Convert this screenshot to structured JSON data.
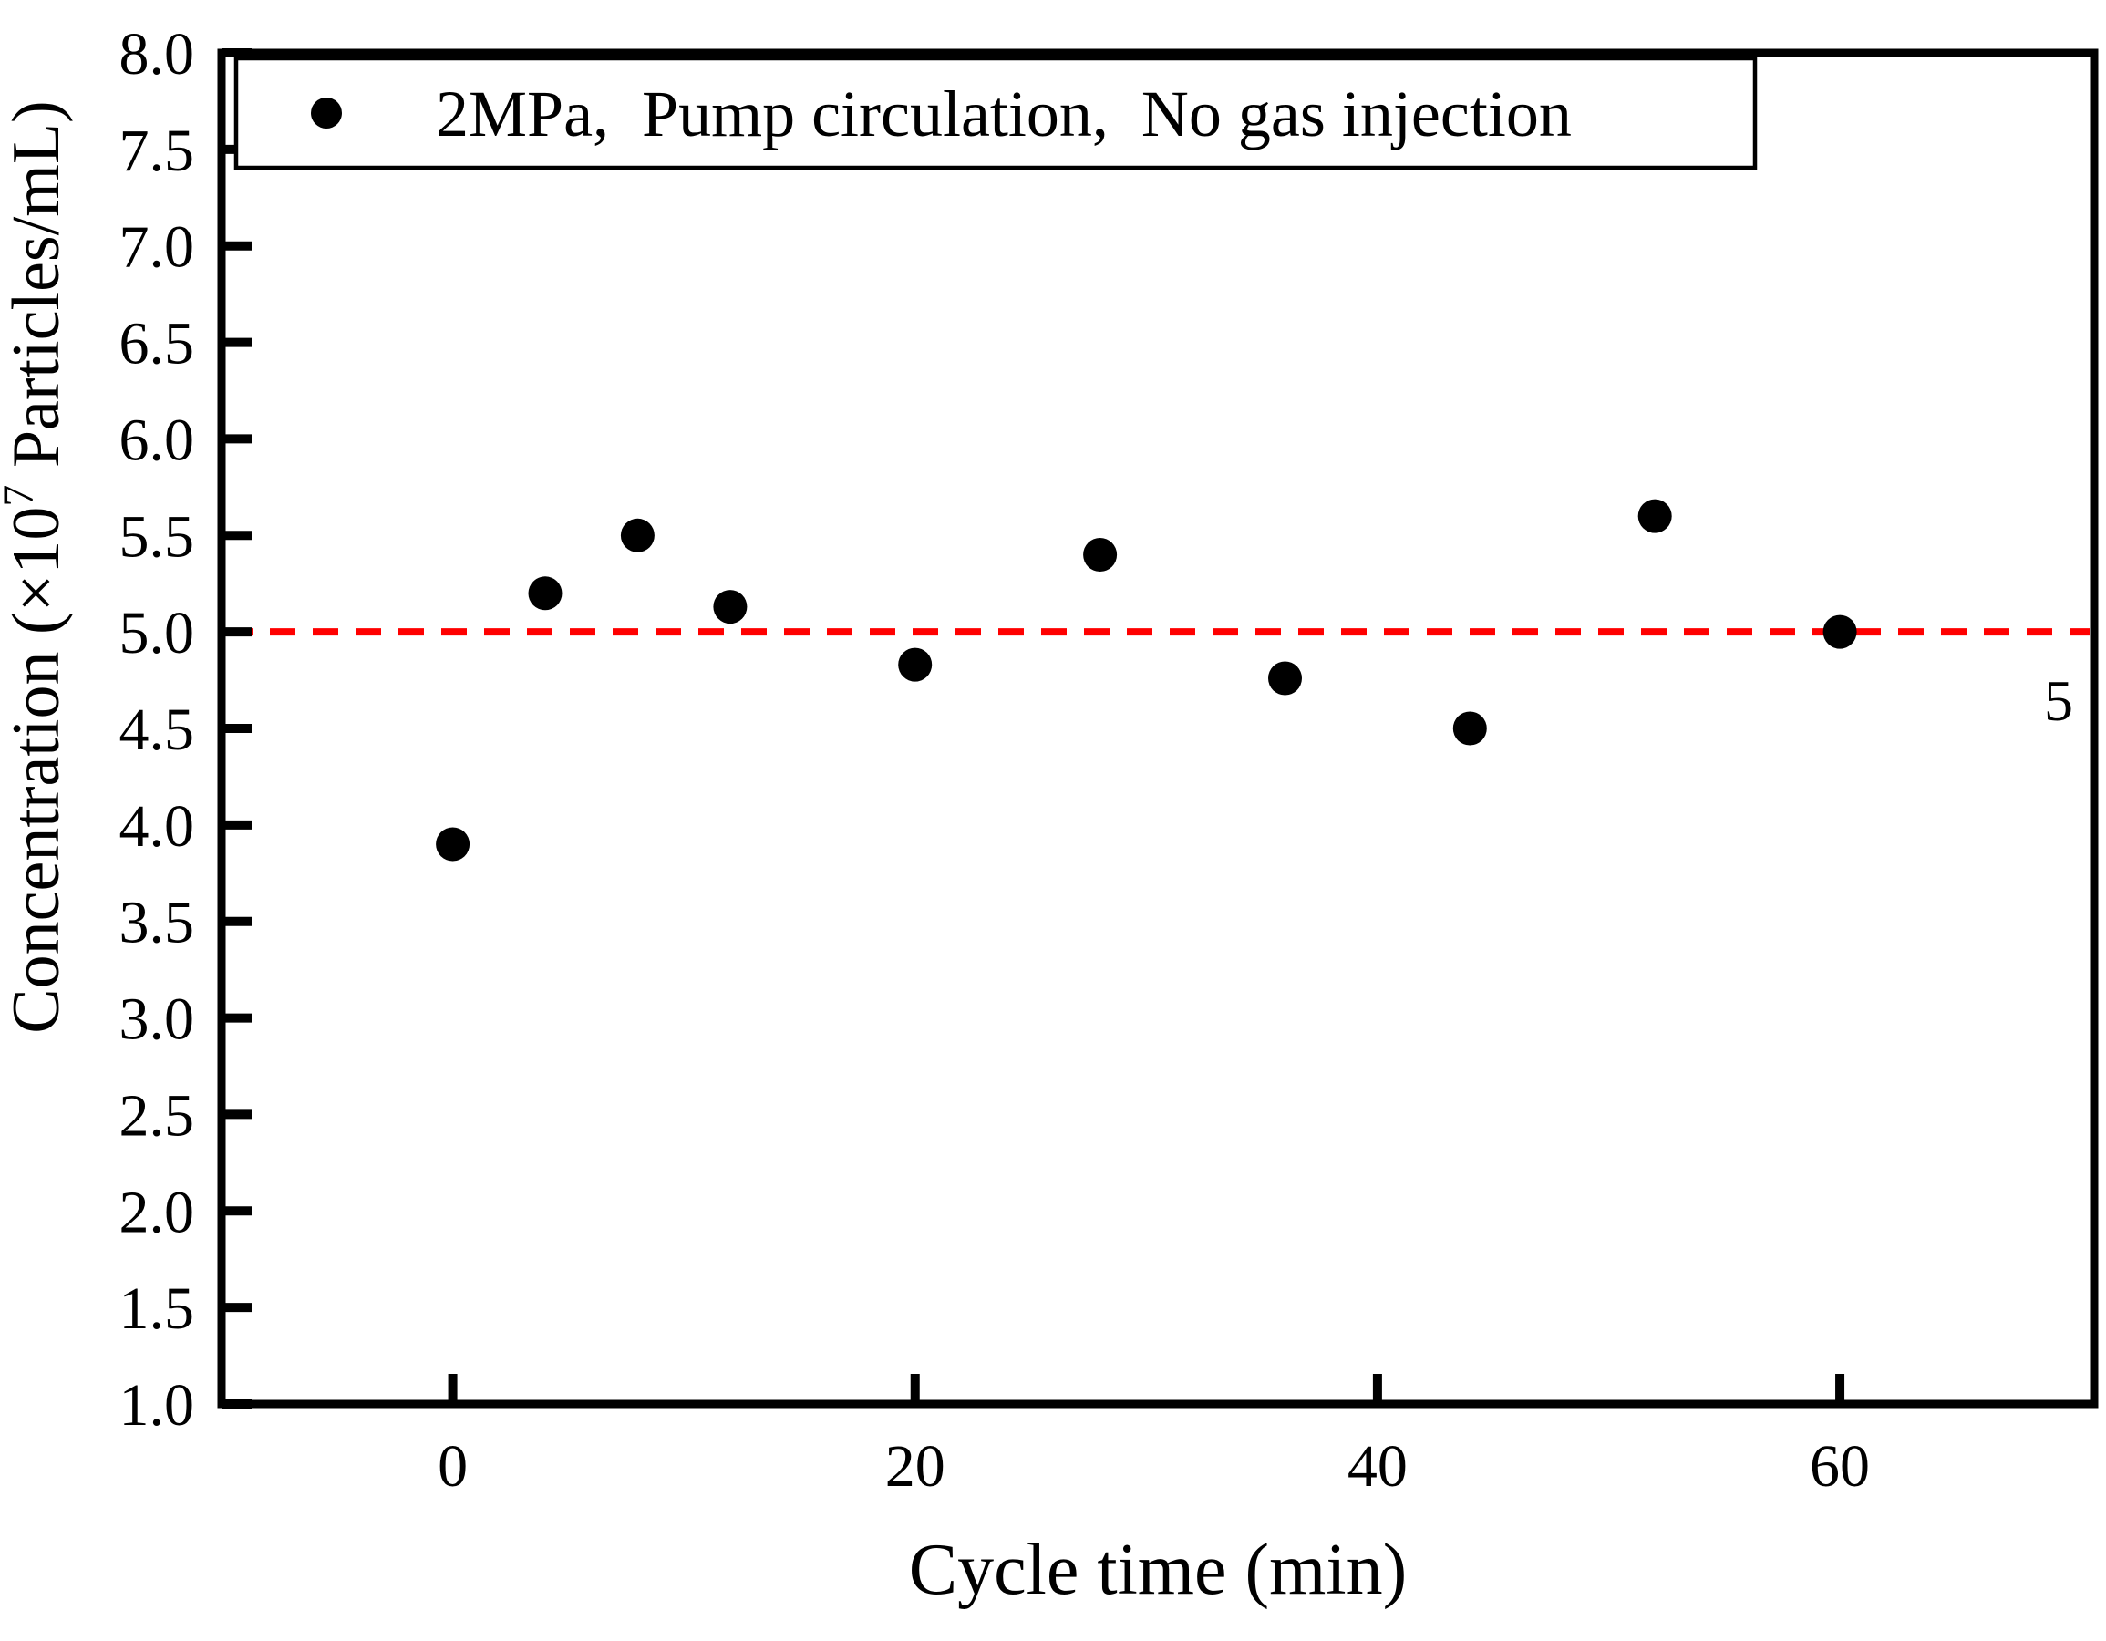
{
  "figure": {
    "background": "#ffffff",
    "frame_color": "#000000"
  },
  "chart_data": {
    "type": "scatter",
    "title": "",
    "xlabel": "Cycle time (min)",
    "ylabel": {
      "prefix": "Concentration (×10",
      "superscript": "7",
      "suffix": " Particles/mL)"
    },
    "xlim": [
      -10,
      71
    ],
    "ylim": [
      1.0,
      8.0
    ],
    "grid": false,
    "x_ticks": [
      {
        "value": 0,
        "label": "0"
      },
      {
        "value": 20,
        "label": "20"
      },
      {
        "value": 40,
        "label": "40"
      },
      {
        "value": 60,
        "label": "60"
      }
    ],
    "y_ticks": [
      {
        "value": 8.0,
        "label": "8.0"
      },
      {
        "value": 7.5,
        "label": "7.5"
      },
      {
        "value": 7.0,
        "label": "7.0"
      },
      {
        "value": 6.5,
        "label": "6.5"
      },
      {
        "value": 6.0,
        "label": "6.0"
      },
      {
        "value": 5.5,
        "label": "5.5"
      },
      {
        "value": 5.0,
        "label": "5.0"
      },
      {
        "value": 4.5,
        "label": "4.5"
      },
      {
        "value": 4.0,
        "label": "4.0"
      },
      {
        "value": 3.5,
        "label": "3.5"
      },
      {
        "value": 3.0,
        "label": "3.0"
      },
      {
        "value": 2.5,
        "label": "2.5"
      },
      {
        "value": 2.0,
        "label": "2.0"
      },
      {
        "value": 1.5,
        "label": "1.5"
      },
      {
        "value": 1.0,
        "label": "1.0"
      }
    ],
    "legend": {
      "position": "top-left-inside",
      "entries": [
        {
          "marker": "filled-circle",
          "color": "#000000",
          "label": "2MPa、 Pump circulation、 No gas injection"
        }
      ]
    },
    "series": [
      {
        "name": "2MPa、 Pump circulation、 No gas injection",
        "marker": "filled-circle",
        "color": "#000000",
        "points": [
          [
            0,
            3.9
          ],
          [
            4,
            5.2
          ],
          [
            8,
            5.5
          ],
          [
            12,
            5.13
          ],
          [
            20,
            4.83
          ],
          [
            28,
            5.4
          ],
          [
            36,
            4.76
          ],
          [
            44,
            4.5
          ],
          [
            52,
            5.6
          ],
          [
            60,
            5.0
          ]
        ]
      }
    ],
    "reference_line": {
      "y": 5.0,
      "label": "5",
      "color": "#ff0000",
      "style": "dashed"
    }
  }
}
